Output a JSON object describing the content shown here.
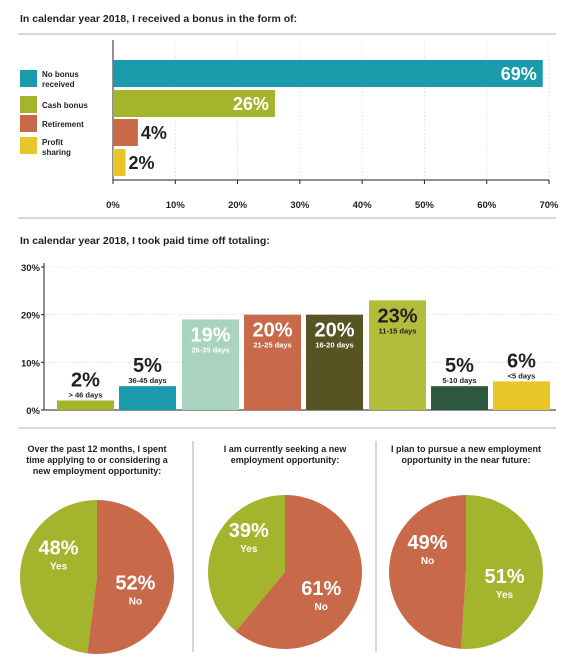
{
  "colors": {
    "teal": "#1a9aaa",
    "olive": "#a4b52d",
    "rust": "#c8694a",
    "gold": "#e8c52a",
    "sage": "#a9d3bf",
    "dark_olive": "#575423",
    "dark_green": "#2f5840",
    "lime": "#b2bd3b",
    "text": "#231f20",
    "rule": "#9a9a9a"
  },
  "chart_data": [
    {
      "type": "bar",
      "orientation": "horizontal",
      "title": "In calendar year 2018, I received a bonus in the form of:",
      "categories": [
        "No bonus received",
        "Cash bonus",
        "Retirement",
        "Profit sharing"
      ],
      "values": [
        69,
        26,
        4,
        2
      ],
      "value_labels": [
        "69%",
        "26%",
        "4%",
        "2%"
      ],
      "colors": [
        "#1a9aaa",
        "#a4b52d",
        "#c8694a",
        "#e8c52a"
      ],
      "xlim": [
        0,
        70
      ],
      "ticks": [
        "0%",
        "10%",
        "20%",
        "30%",
        "40%",
        "50%",
        "60%",
        "70%"
      ],
      "legend": [
        "No bonus received",
        "Cash bonus",
        "Retirement",
        "Profit sharing"
      ],
      "legend_position": "left"
    },
    {
      "type": "bar",
      "title": "In calendar year 2018, I took paid time off totaling:",
      "categories": [
        "> 46 days",
        "36-45 days",
        "26-35 days",
        "21-25 days",
        "16-20 days",
        "11-15 days",
        "5-10 days",
        "<5 days"
      ],
      "values": [
        2,
        5,
        19,
        20,
        20,
        23,
        5,
        6
      ],
      "value_labels": [
        "2%",
        "5%",
        "19%",
        "20%",
        "20%",
        "23%",
        "5%",
        "6%"
      ],
      "colors": [
        "#a4b52d",
        "#1a9aaa",
        "#a9d3bf",
        "#c8694a",
        "#575423",
        "#b2bd3b",
        "#2f5840",
        "#e8c52a"
      ],
      "ylim": [
        0,
        30
      ],
      "ticks": [
        "0%",
        "10%",
        "20%",
        "30%"
      ]
    },
    {
      "type": "pie",
      "title": "Over the past 12 months, I spent time applying to or considering a new employment opportunity:",
      "labels": [
        "Yes",
        "No"
      ],
      "values": [
        48,
        52
      ],
      "value_labels": [
        "48%",
        "52%"
      ],
      "colors": [
        "#a4b52d",
        "#c8694a"
      ]
    },
    {
      "type": "pie",
      "title": "I am currently seeking a new employment opportunity:",
      "labels": [
        "Yes",
        "No"
      ],
      "values": [
        39,
        61
      ],
      "value_labels": [
        "39%",
        "61%"
      ],
      "colors": [
        "#a4b52d",
        "#c8694a"
      ]
    },
    {
      "type": "pie",
      "title": "I plan to pursue a new employment opportunity in the near future:",
      "labels": [
        "No",
        "Yes"
      ],
      "values": [
        49,
        51
      ],
      "value_labels": [
        "49%",
        "51%"
      ],
      "colors": [
        "#c8694a",
        "#a4b52d"
      ]
    }
  ]
}
